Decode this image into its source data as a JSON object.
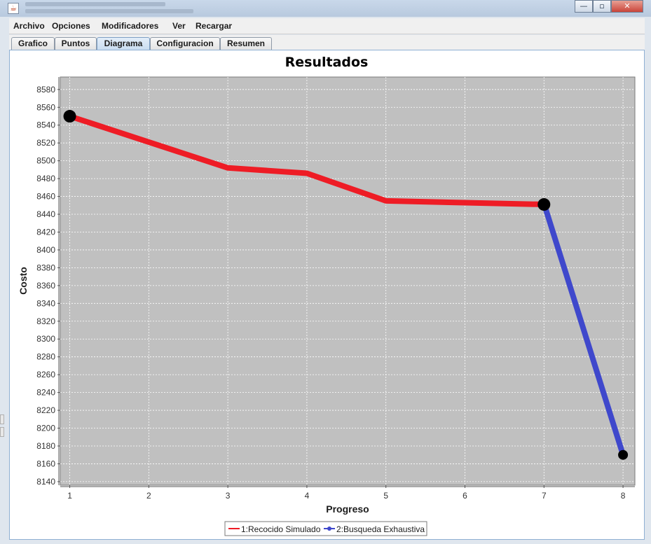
{
  "menu": {
    "items": [
      "Archivo",
      "Opciones",
      "Modificadores",
      "Ver",
      "Recargar"
    ]
  },
  "tabs": {
    "items": [
      "Grafico",
      "Puntos",
      "Diagrama",
      "Configuracion",
      "Resumen"
    ],
    "active": "Diagrama"
  },
  "window_buttons": {
    "minimize": "—",
    "maximize": "▫",
    "close": "✕"
  },
  "icons": {
    "app": "java-icon"
  },
  "colors": {
    "series1": "#ee1c25",
    "series2": "#3f48cc",
    "plot_background": "#c0c0c0",
    "marker": "#000000"
  },
  "chart_data": {
    "type": "line",
    "title": "Resultados",
    "xlabel": "Progreso",
    "ylabel": "Costo",
    "xlim": [
      0.88,
      8.15
    ],
    "ylim": [
      8136,
      8594
    ],
    "xticks": [
      1,
      2,
      3,
      4,
      5,
      6,
      7,
      8
    ],
    "yticks": [
      8140,
      8160,
      8180,
      8200,
      8220,
      8240,
      8260,
      8280,
      8300,
      8320,
      8340,
      8360,
      8380,
      8400,
      8420,
      8440,
      8460,
      8480,
      8500,
      8520,
      8540,
      8560,
      8580
    ],
    "grid": true,
    "legend_position": "bottom",
    "series": [
      {
        "name": "1:Recocido Simulado",
        "x": [
          1,
          2,
          3,
          4,
          5,
          6,
          7
        ],
        "y": [
          8550,
          8521,
          8492,
          8486,
          8455,
          8453,
          8451
        ],
        "markers": [
          1,
          7
        ]
      },
      {
        "name": "2:Busqueda Exhaustiva",
        "x": [
          7,
          8
        ],
        "y": [
          8452,
          8170
        ],
        "markers": [
          8
        ]
      }
    ]
  }
}
